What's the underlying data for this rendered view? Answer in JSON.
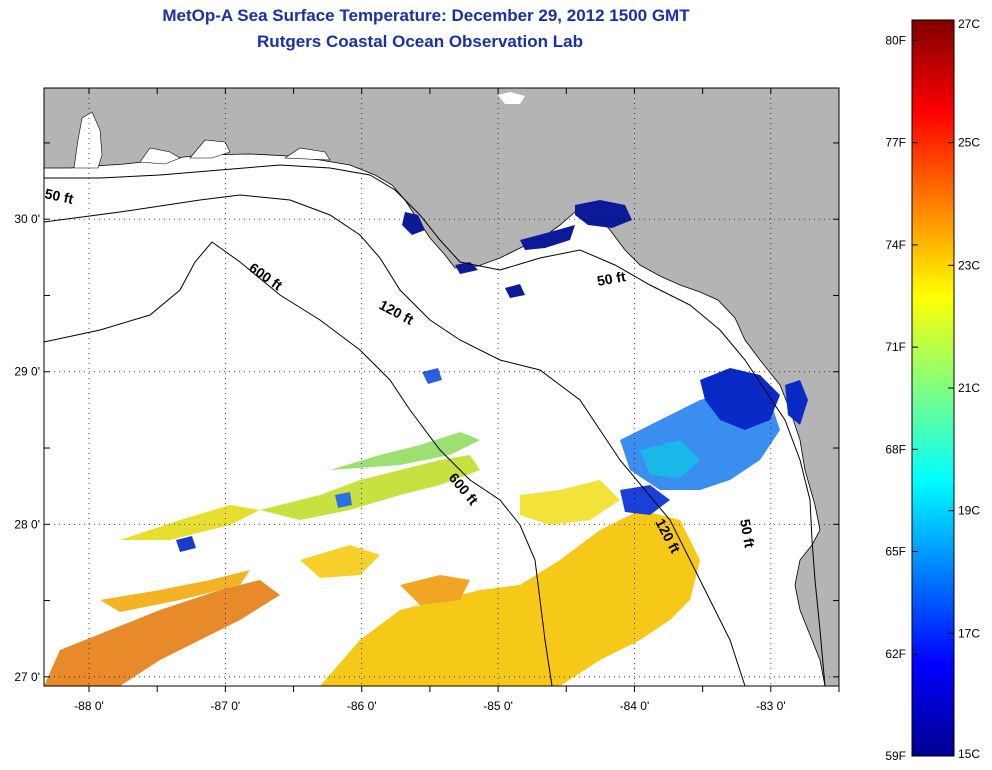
{
  "title_line1": "MetOp-A Sea Surface Temperature:  December 29, 2012 1500 GMT",
  "title_line2": "Rutgers Coastal Ocean Observation Lab",
  "map": {
    "lon_ticks": [
      {
        "value": -88,
        "label": "-88 0'"
      },
      {
        "value": -87,
        "label": "-87 0'"
      },
      {
        "value": -86,
        "label": "-86 0'"
      },
      {
        "value": -85,
        "label": "-85 0'"
      },
      {
        "value": -84,
        "label": "-84 0'"
      },
      {
        "value": -83,
        "label": "-83 0'"
      }
    ],
    "lat_ticks": [
      {
        "value": 30,
        "label": "30 0'"
      },
      {
        "value": 29,
        "label": "29 0'"
      },
      {
        "value": 28,
        "label": "28 0'"
      },
      {
        "value": 27,
        "label": "27 0'"
      }
    ],
    "lon_range": [
      -88.33,
      -82.5
    ],
    "lat_range": [
      26.94,
      30.86
    ],
    "land_color": "#b4b4b4",
    "grid": "dotted",
    "depth_labels": [
      "50 ft",
      "600 ft",
      "120 ft",
      "50 ft",
      "600 ft",
      "120 ft",
      "50 ft"
    ]
  },
  "colorbar": {
    "colormap": "jet",
    "range_c": [
      15,
      27
    ],
    "fahrenheit_labels": [
      "80F",
      "77F",
      "74F",
      "71F",
      "68F",
      "65F",
      "62F",
      "59F"
    ],
    "celsius_labels": [
      "27C",
      "25C",
      "23C",
      "21C",
      "19C",
      "17C",
      "15C"
    ]
  }
}
